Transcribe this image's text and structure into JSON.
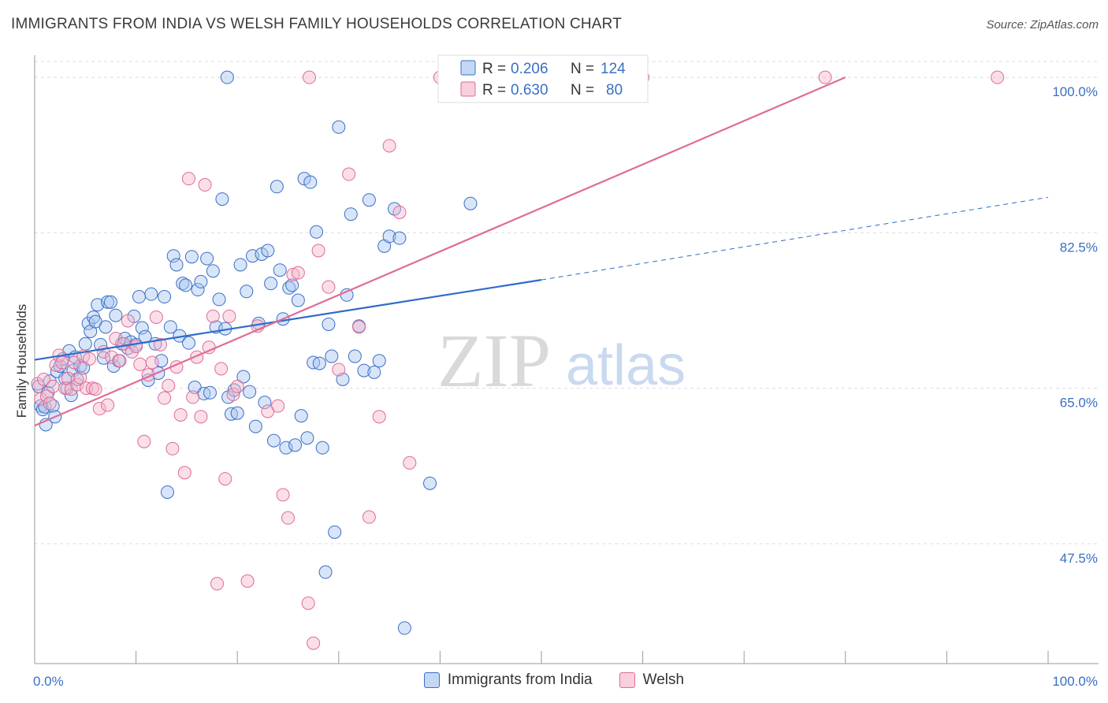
{
  "header": {
    "title": "IMMIGRANTS FROM INDIA VS WELSH FAMILY HOUSEHOLDS CORRELATION CHART",
    "source": "Source: ZipAtlas.com"
  },
  "colors": {
    "blue": "#3a6fc4",
    "blue_fill": "#a9c6ef",
    "pink": "#e06b98",
    "pink_fill": "#f4b7cb",
    "grid": "#dddddd"
  },
  "watermark": {
    "zip": "ZIP",
    "atlas": "atlas"
  },
  "legend": {
    "rows": [
      {
        "r_label": "R =",
        "r_value": "0.206",
        "n_label": "N =",
        "n_value": "124"
      },
      {
        "r_label": "R =",
        "r_value": "0.630",
        "n_label": "N =",
        "n_value": "80"
      }
    ]
  },
  "bottom_legend": {
    "series1": "Immigrants from India",
    "series2": "Welsh"
  },
  "chart_data": {
    "type": "scatter",
    "ylabel": "Family Households",
    "x_ticks": [
      "0.0%",
      "100.0%"
    ],
    "y_ticks": [
      "100.0%",
      "82.5%",
      "65.0%",
      "47.5%"
    ],
    "y_tick_values": [
      100,
      82.5,
      65,
      47.5
    ],
    "xlim": [
      0,
      100
    ],
    "ylim": [
      34,
      102.5
    ],
    "grid": true,
    "series": [
      {
        "name": "Immigrants from India",
        "color": "#3a6fc4",
        "trend": {
          "x0": 0,
          "y0": 68.2,
          "x1": 50,
          "y1": 77.2,
          "dashed_to_x": 100,
          "dashed_to_y": 86.5
        },
        "points": [
          [
            0.4,
            65.2
          ],
          [
            0.6,
            63.0
          ],
          [
            0.8,
            62.6
          ],
          [
            1.0,
            62.9
          ],
          [
            1.1,
            60.9
          ],
          [
            1.3,
            64.5
          ],
          [
            1.5,
            65.8
          ],
          [
            1.8,
            63.0
          ],
          [
            2.0,
            61.8
          ],
          [
            2.2,
            66.9
          ],
          [
            2.5,
            67.5
          ],
          [
            2.8,
            68.3
          ],
          [
            3.0,
            66.1
          ],
          [
            3.2,
            65.0
          ],
          [
            3.4,
            69.2
          ],
          [
            3.6,
            64.2
          ],
          [
            3.8,
            67.0
          ],
          [
            4.0,
            68.5
          ],
          [
            4.2,
            66.0
          ],
          [
            4.5,
            67.5
          ],
          [
            4.8,
            67.3
          ],
          [
            5.0,
            70.0
          ],
          [
            5.3,
            72.3
          ],
          [
            5.5,
            71.4
          ],
          [
            5.8,
            73.0
          ],
          [
            6.0,
            72.5
          ],
          [
            6.2,
            74.4
          ],
          [
            6.5,
            69.9
          ],
          [
            6.8,
            68.4
          ],
          [
            7.0,
            71.9
          ],
          [
            7.2,
            74.7
          ],
          [
            7.5,
            74.7
          ],
          [
            7.8,
            67.5
          ],
          [
            8.0,
            73.2
          ],
          [
            8.3,
            68.1
          ],
          [
            8.6,
            70.0
          ],
          [
            8.9,
            70.6
          ],
          [
            9.2,
            69.5
          ],
          [
            9.5,
            70.2
          ],
          [
            9.8,
            73.1
          ],
          [
            10.0,
            69.9
          ],
          [
            10.3,
            75.3
          ],
          [
            10.6,
            71.8
          ],
          [
            10.9,
            70.8
          ],
          [
            11.2,
            65.9
          ],
          [
            11.5,
            75.6
          ],
          [
            11.9,
            70.0
          ],
          [
            12.2,
            66.7
          ],
          [
            12.5,
            68.1
          ],
          [
            12.8,
            75.3
          ],
          [
            13.1,
            53.3
          ],
          [
            13.4,
            71.9
          ],
          [
            13.7,
            79.9
          ],
          [
            14.0,
            78.9
          ],
          [
            14.3,
            70.9
          ],
          [
            14.6,
            76.8
          ],
          [
            14.9,
            76.6
          ],
          [
            15.2,
            70.1
          ],
          [
            15.5,
            79.8
          ],
          [
            15.8,
            65.1
          ],
          [
            16.1,
            76.1
          ],
          [
            16.4,
            77.0
          ],
          [
            16.7,
            64.4
          ],
          [
            17.0,
            79.6
          ],
          [
            17.3,
            64.5
          ],
          [
            17.6,
            78.2
          ],
          [
            17.9,
            71.9
          ],
          [
            18.2,
            75.0
          ],
          [
            18.5,
            86.3
          ],
          [
            18.8,
            71.7
          ],
          [
            19.1,
            64.0
          ],
          [
            19.4,
            62.1
          ],
          [
            19.7,
            64.8
          ],
          [
            20.0,
            62.2
          ],
          [
            20.3,
            78.9
          ],
          [
            20.6,
            66.3
          ],
          [
            20.9,
            75.9
          ],
          [
            21.2,
            64.6
          ],
          [
            21.5,
            79.9
          ],
          [
            21.8,
            60.7
          ],
          [
            22.1,
            72.3
          ],
          [
            22.4,
            80.1
          ],
          [
            22.7,
            63.4
          ],
          [
            23.0,
            80.5
          ],
          [
            23.3,
            76.8
          ],
          [
            23.6,
            59.1
          ],
          [
            23.9,
            87.7
          ],
          [
            24.2,
            78.3
          ],
          [
            24.5,
            72.8
          ],
          [
            24.8,
            58.3
          ],
          [
            25.1,
            76.3
          ],
          [
            25.4,
            76.6
          ],
          [
            25.7,
            58.6
          ],
          [
            26.0,
            74.9
          ],
          [
            26.3,
            61.9
          ],
          [
            26.6,
            88.6
          ],
          [
            26.9,
            59.4
          ],
          [
            27.2,
            88.2
          ],
          [
            27.5,
            67.9
          ],
          [
            27.8,
            82.6
          ],
          [
            28.1,
            67.8
          ],
          [
            28.4,
            58.3
          ],
          [
            28.7,
            44.3
          ],
          [
            29.0,
            72.2
          ],
          [
            29.3,
            68.6
          ],
          [
            29.6,
            48.8
          ],
          [
            30.0,
            94.4
          ],
          [
            30.4,
            66.0
          ],
          [
            30.8,
            75.5
          ],
          [
            31.2,
            84.6
          ],
          [
            31.6,
            68.6
          ],
          [
            32.0,
            72.0
          ],
          [
            32.5,
            67.0
          ],
          [
            33.0,
            86.2
          ],
          [
            33.5,
            66.8
          ],
          [
            34.0,
            68.1
          ],
          [
            34.5,
            81.0
          ],
          [
            35.0,
            82.1
          ],
          [
            35.5,
            85.2
          ],
          [
            36.0,
            81.9
          ],
          [
            36.5,
            38.0
          ],
          [
            39.0,
            54.3
          ],
          [
            43.0,
            85.8
          ],
          [
            19.0,
            100.0
          ]
        ]
      },
      {
        "name": "Welsh",
        "color": "#e06b98",
        "trend": {
          "x0": 0,
          "y0": 60.8,
          "x1": 80,
          "y1": 100.0
        },
        "points": [
          [
            0.3,
            65.5
          ],
          [
            0.6,
            63.8
          ],
          [
            0.9,
            66.0
          ],
          [
            1.2,
            64.1
          ],
          [
            1.5,
            63.3
          ],
          [
            1.8,
            65.2
          ],
          [
            2.1,
            67.6
          ],
          [
            2.4,
            68.7
          ],
          [
            2.7,
            67.9
          ],
          [
            3.0,
            65.0
          ],
          [
            3.3,
            66.1
          ],
          [
            3.6,
            64.9
          ],
          [
            3.9,
            67.9
          ],
          [
            4.2,
            65.4
          ],
          [
            4.5,
            66.2
          ],
          [
            4.8,
            68.6
          ],
          [
            5.1,
            65.0
          ],
          [
            5.4,
            68.3
          ],
          [
            5.7,
            65.0
          ],
          [
            6.0,
            64.9
          ],
          [
            6.4,
            62.7
          ],
          [
            6.8,
            69.1
          ],
          [
            7.2,
            63.1
          ],
          [
            7.6,
            68.5
          ],
          [
            8.0,
            70.6
          ],
          [
            8.4,
            68.1
          ],
          [
            8.8,
            70.0
          ],
          [
            9.2,
            72.6
          ],
          [
            9.6,
            69.1
          ],
          [
            10.0,
            69.7
          ],
          [
            10.4,
            67.7
          ],
          [
            10.8,
            59.0
          ],
          [
            11.2,
            66.5
          ],
          [
            11.6,
            67.9
          ],
          [
            12.0,
            73.0
          ],
          [
            12.4,
            69.9
          ],
          [
            12.8,
            63.9
          ],
          [
            13.2,
            65.3
          ],
          [
            13.6,
            58.2
          ],
          [
            14.0,
            67.4
          ],
          [
            14.4,
            62.0
          ],
          [
            14.8,
            55.5
          ],
          [
            15.2,
            88.6
          ],
          [
            15.6,
            64.0
          ],
          [
            16.0,
            68.5
          ],
          [
            16.4,
            61.8
          ],
          [
            16.8,
            87.9
          ],
          [
            17.2,
            69.6
          ],
          [
            17.6,
            73.1
          ],
          [
            18.0,
            43.0
          ],
          [
            18.4,
            67.2
          ],
          [
            18.8,
            54.8
          ],
          [
            19.2,
            73.1
          ],
          [
            19.6,
            64.3
          ],
          [
            20.0,
            65.2
          ],
          [
            21.0,
            43.3
          ],
          [
            22.0,
            72.0
          ],
          [
            23.0,
            62.4
          ],
          [
            24.0,
            63.0
          ],
          [
            24.5,
            53.0
          ],
          [
            25.0,
            50.4
          ],
          [
            25.5,
            77.8
          ],
          [
            26.0,
            78.0
          ],
          [
            27.0,
            40.8
          ],
          [
            27.5,
            36.3
          ],
          [
            28.0,
            80.5
          ],
          [
            29.0,
            76.4
          ],
          [
            30.0,
            67.1
          ],
          [
            31.0,
            89.1
          ],
          [
            32.0,
            71.9
          ],
          [
            33.0,
            50.5
          ],
          [
            34.0,
            61.8
          ],
          [
            35.0,
            92.3
          ],
          [
            36.0,
            84.8
          ],
          [
            37.0,
            56.6
          ],
          [
            27.1,
            100.0
          ],
          [
            40.0,
            100.0
          ],
          [
            60.0,
            100.0
          ],
          [
            78.0,
            100.0
          ],
          [
            95.0,
            100.0
          ]
        ]
      }
    ]
  }
}
